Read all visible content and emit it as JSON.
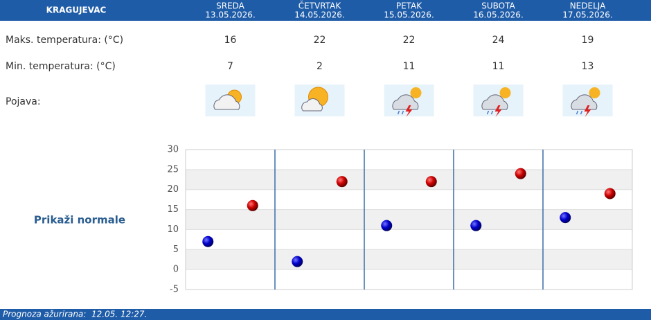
{
  "header": {
    "city": "KRAGUJEVAC"
  },
  "phenomenon_label": "Pojava:",
  "normals_link": "Prikaži normale",
  "footer": "Prognoza ažurirana:  12.05. 12:27.",
  "chart_data": {
    "type": "scatter",
    "categories": [
      "SREDA",
      "ČETVRTAK",
      "PETAK",
      "SUBOTA",
      "NEDELJA"
    ],
    "dates": [
      "13.05.2026.",
      "14.05.2026.",
      "15.05.2026.",
      "16.05.2026.",
      "17.05.2026."
    ],
    "series": [
      {
        "name": "Maks. temperatura: (°C)",
        "color": "#cc0000",
        "values": [
          16,
          22,
          22,
          24,
          19
        ]
      },
      {
        "name": "Min. temperatura: (°C)",
        "color": "#0000cc",
        "values": [
          7,
          2,
          11,
          11,
          13
        ]
      }
    ],
    "ylim": [
      -5,
      30
    ],
    "yticks": [
      -5,
      0,
      5,
      10,
      15,
      20,
      25,
      30
    ],
    "grid": true
  }
}
